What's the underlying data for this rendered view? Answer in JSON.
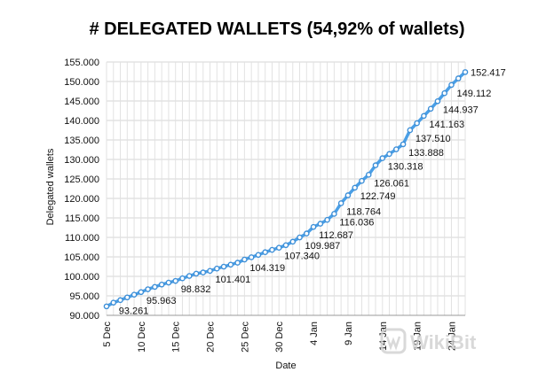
{
  "chart_data": {
    "type": "line",
    "title": "# DELEGATED WALLETS (54,92% of wallets)",
    "xlabel": "Date",
    "ylabel": "Delegated wallets",
    "ylim": [
      90000,
      155000
    ],
    "y_ticks": [
      "90.000",
      "95.000",
      "100.000",
      "105.000",
      "110.000",
      "115.000",
      "120.000",
      "125.000",
      "130.000",
      "135.000",
      "140.000",
      "145.000",
      "150.000",
      "155.000"
    ],
    "x_ticks": [
      {
        "label": "5 Dec",
        "day": 0
      },
      {
        "label": "10 Dec",
        "day": 5
      },
      {
        "label": "15 Dec",
        "day": 10
      },
      {
        "label": "20 Dec",
        "day": 15
      },
      {
        "label": "25 Dec",
        "day": 20
      },
      {
        "label": "30 Dec",
        "day": 25
      },
      {
        "label": "4 Jan",
        "day": 30
      },
      {
        "label": "9 Jan",
        "day": 35
      },
      {
        "label": "14 Jan",
        "day": 40
      },
      {
        "label": "19 Jan",
        "day": 45
      },
      {
        "label": "24 Jan",
        "day": 50
      }
    ],
    "series": [
      {
        "color": "#4a9fe6",
        "values": [
          92300,
          93261,
          93900,
          94600,
          95300,
          95963,
          96700,
          97300,
          97900,
          98400,
          98832,
          99500,
          100100,
          100700,
          101000,
          101401,
          102000,
          102500,
          103000,
          103500,
          104319,
          104900,
          105500,
          106200,
          106800,
          107340,
          108000,
          108900,
          109987,
          111000,
          112687,
          113500,
          114500,
          116036,
          118764,
          120800,
          122749,
          124500,
          126061,
          128500,
          130318,
          131400,
          132600,
          133888,
          137510,
          139300,
          141163,
          143000,
          144937,
          147000,
          149112,
          150800,
          152417
        ],
        "labeled_points": [
          {
            "index": 1,
            "label": "93.261"
          },
          {
            "index": 5,
            "label": "95.963"
          },
          {
            "index": 10,
            "label": "98.832"
          },
          {
            "index": 15,
            "label": "101.401"
          },
          {
            "index": 20,
            "label": "104.319"
          },
          {
            "index": 25,
            "label": "107.340"
          },
          {
            "index": 28,
            "label": "109.987"
          },
          {
            "index": 30,
            "label": "112.687"
          },
          {
            "index": 33,
            "label": "116.036"
          },
          {
            "index": 34,
            "label": "118.764"
          },
          {
            "index": 36,
            "label": "122.749"
          },
          {
            "index": 38,
            "label": "126.061"
          },
          {
            "index": 40,
            "label": "130.318"
          },
          {
            "index": 43,
            "label": "133.888"
          },
          {
            "index": 44,
            "label": "137.510"
          },
          {
            "index": 46,
            "label": "141.163"
          },
          {
            "index": 48,
            "label": "144.937"
          },
          {
            "index": 50,
            "label": "149.112"
          },
          {
            "index": 52,
            "label": "152.417"
          }
        ]
      }
    ],
    "grid": true
  },
  "watermark": {
    "text": "WikiBit",
    "icon": "wikibit-logo-icon"
  }
}
